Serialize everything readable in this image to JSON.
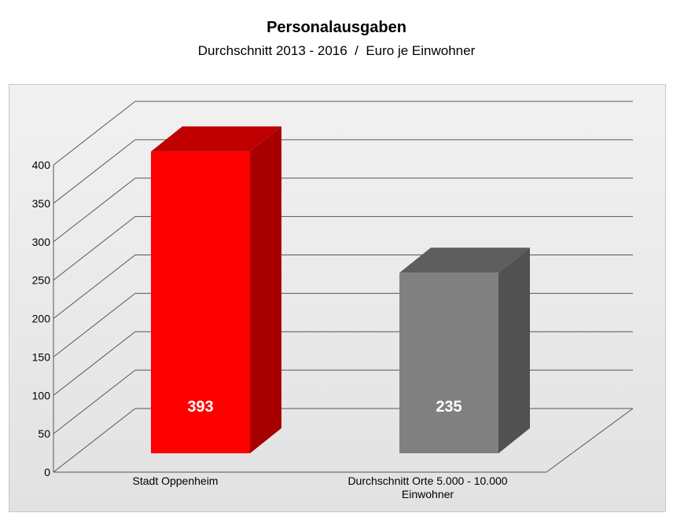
{
  "chart_data": {
    "type": "bar",
    "title": "Personalausgaben",
    "subtitle": "Durchschnitt 2013 - 2016  /  Euro je Einwohner",
    "categories": [
      "Stadt Oppenheim",
      "Durchschnitt Orte 5.000 - 10.000 Einwohner"
    ],
    "category_lines": [
      [
        "Stadt Oppenheim"
      ],
      [
        "Durchschnitt Orte 5.000 - 10.000",
        "Einwohner"
      ]
    ],
    "values": [
      393,
      235
    ],
    "value_labels": [
      "393",
      "235"
    ],
    "ylim": [
      0,
      400
    ],
    "yticks": [
      0,
      50,
      100,
      150,
      200,
      250,
      300,
      350,
      400
    ],
    "ytick_labels": [
      "0",
      "50",
      "100",
      "150",
      "200",
      "250",
      "300",
      "350",
      "400"
    ],
    "grid": true,
    "style": "3d",
    "colors": {
      "bar1": "#ff0000",
      "bar2": "#808080"
    }
  }
}
